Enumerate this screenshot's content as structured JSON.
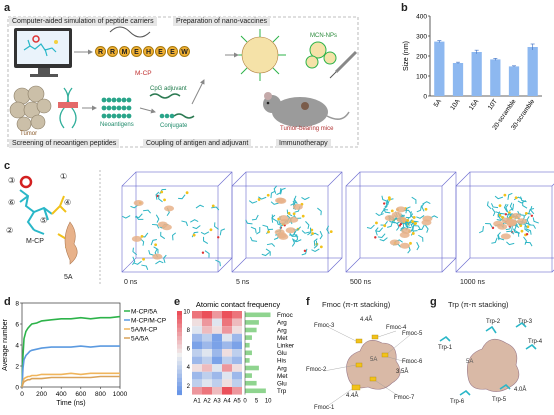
{
  "panels": {
    "a": {
      "label": "a",
      "box_titles": [
        "Computer-aided simulation of peptide carriers",
        "Preparation of nano-vaccines",
        "Screening of neoantigen peptides",
        "Coupling of antigen and adjuvant",
        "Immunotherapy"
      ],
      "labels": {
        "mcp": "M-CP",
        "mcn": "MCN-NPs",
        "tumor": "Tumor",
        "neoantigens": "Neoantigens",
        "cpg": "CpG adjuvant",
        "conjugate": "Conjugate",
        "mice": "Tumor-bearing mice"
      },
      "peptide_letters": [
        "R",
        "R",
        "M",
        "E",
        "H",
        "E",
        "E",
        "W"
      ]
    },
    "b": {
      "label": "b"
    },
    "c": {
      "label": "c",
      "molecule_label": "M-CP",
      "peptide_label": "5A",
      "circle_labels": [
        "①",
        "②",
        "③",
        "④",
        "⑤",
        "⑥"
      ],
      "times": [
        "0 ns",
        "5 ns",
        "500 ns",
        "1000 ns"
      ]
    },
    "d": {
      "label": "d"
    },
    "e": {
      "label": "e",
      "title": "Atomic contact frequency",
      "cols": [
        "A1",
        "A2",
        "A3",
        "A4",
        "A5"
      ],
      "row_labels": [
        "Fmoc",
        "Arg",
        "Arg",
        "Met",
        "Linker",
        "Glu",
        "His",
        "Arg",
        "Met",
        "Glu",
        "Trp"
      ],
      "cbar_ticks": [
        "10",
        "8",
        "6",
        "4",
        "2"
      ],
      "bar_axis_ticks": [
        "0",
        "5",
        "10"
      ]
    },
    "f": {
      "label": "f",
      "title": "Fmoc (π-π stacking)",
      "labels": [
        "Fmoc-3",
        "Fmoc-4",
        "Fmoc-5",
        "Fmoc-6",
        "Fmoc-2",
        "Fmoc-1",
        "Fmoc-7",
        "5A"
      ],
      "distances": [
        "4.4Å",
        "3.5Å",
        "4.4Å"
      ]
    },
    "g": {
      "label": "g",
      "title": "Trp (π-π stacking)",
      "labels": [
        "Trp-2",
        "Trp-3",
        "Trp-1",
        "Trp-4",
        "5A",
        "Trp-6",
        "Trp-5"
      ],
      "distances": [
        "4.0Å"
      ]
    }
  },
  "chart_data": [
    {
      "type": "bar",
      "panel": "b",
      "categories": [
        "5A",
        "10A",
        "15A",
        "10T",
        "20-scramble",
        "30-scramble"
      ],
      "values": [
        272,
        165,
        220,
        183,
        148,
        245
      ],
      "errors": [
        5,
        4,
        9,
        5,
        3,
        15
      ],
      "ylabel": "Size (nm)",
      "ylim": [
        0,
        400
      ],
      "yticks": [
        0,
        100,
        200,
        300,
        400
      ],
      "color": "#8db8f0"
    },
    {
      "type": "line",
      "panel": "d",
      "xlabel": "Time (ns)",
      "ylabel": "Average number",
      "xlim": [
        0,
        1000
      ],
      "ylim": [
        0,
        8
      ],
      "xticks": [
        0,
        200,
        400,
        600,
        800,
        1000
      ],
      "yticks": [
        0,
        2,
        4,
        6,
        8
      ],
      "series": [
        {
          "name": "M-CP/5A",
          "color": "#2db34a",
          "x": [
            0,
            10,
            20,
            40,
            60,
            80,
            100,
            150,
            200,
            300,
            400,
            500,
            600,
            700,
            800,
            900,
            1000
          ],
          "y": [
            0,
            3.0,
            4.6,
            5.3,
            5.6,
            5.8,
            6.0,
            6.1,
            6.3,
            6.4,
            6.5,
            6.5,
            6.6,
            6.5,
            6.6,
            6.6,
            6.7
          ]
        },
        {
          "name": "M-CP/M-CP",
          "color": "#5b9ae0",
          "x": [
            0,
            10,
            20,
            40,
            60,
            80,
            100,
            150,
            200,
            300,
            400,
            500,
            600,
            700,
            800,
            900,
            1000
          ],
          "y": [
            0,
            1.8,
            2.6,
            3.0,
            3.2,
            3.4,
            3.5,
            3.6,
            3.7,
            3.8,
            3.8,
            3.8,
            3.9,
            3.8,
            3.9,
            3.9,
            3.9
          ]
        },
        {
          "name": "5A/M-CP",
          "color": "#f0b55c",
          "x": [
            0,
            10,
            20,
            40,
            60,
            80,
            100,
            150,
            200,
            300,
            400,
            500,
            600,
            700,
            800,
            900,
            1000
          ],
          "y": [
            0,
            0.5,
            0.8,
            0.9,
            1.0,
            1.0,
            1.1,
            1.1,
            1.2,
            1.2,
            1.2,
            1.3,
            1.2,
            1.3,
            1.3,
            1.3,
            1.3
          ]
        },
        {
          "name": "5A/5A",
          "color": "#d9a35a",
          "x": [
            0,
            10,
            20,
            40,
            60,
            80,
            100,
            150,
            200,
            300,
            400,
            500,
            600,
            700,
            800,
            900,
            1000
          ],
          "y": [
            0,
            0.3,
            0.5,
            0.6,
            0.7,
            0.7,
            0.8,
            0.8,
            0.8,
            0.9,
            0.9,
            0.9,
            0.9,
            0.9,
            1.0,
            1.0,
            1.0
          ]
        }
      ]
    },
    {
      "type": "heatmap",
      "panel": "e",
      "cols": [
        "A1",
        "A2",
        "A3",
        "A4",
        "A5"
      ],
      "rows": [
        "Fmoc",
        "Arg",
        "Arg",
        "Met",
        "Linker",
        "Glu",
        "His",
        "Arg",
        "Met",
        "Glu",
        "Trp"
      ],
      "values": [
        [
          9,
          10,
          8,
          10,
          9
        ],
        [
          6,
          8,
          5,
          9,
          7
        ],
        [
          5,
          7,
          6,
          8,
          6
        ],
        [
          3,
          4,
          2,
          5,
          3
        ],
        [
          2,
          3,
          2,
          3,
          2
        ],
        [
          4,
          5,
          3,
          6,
          4
        ],
        [
          3,
          4,
          2,
          4,
          3
        ],
        [
          6,
          7,
          5,
          8,
          6
        ],
        [
          3,
          4,
          3,
          5,
          3
        ],
        [
          4,
          5,
          4,
          6,
          4
        ],
        [
          8,
          9,
          7,
          10,
          8
        ]
      ],
      "vmin": 1,
      "vmax": 10,
      "side_bars": [
        11,
        6,
        5,
        3,
        2,
        3,
        2,
        6,
        3,
        5,
        9
      ]
    }
  ]
}
